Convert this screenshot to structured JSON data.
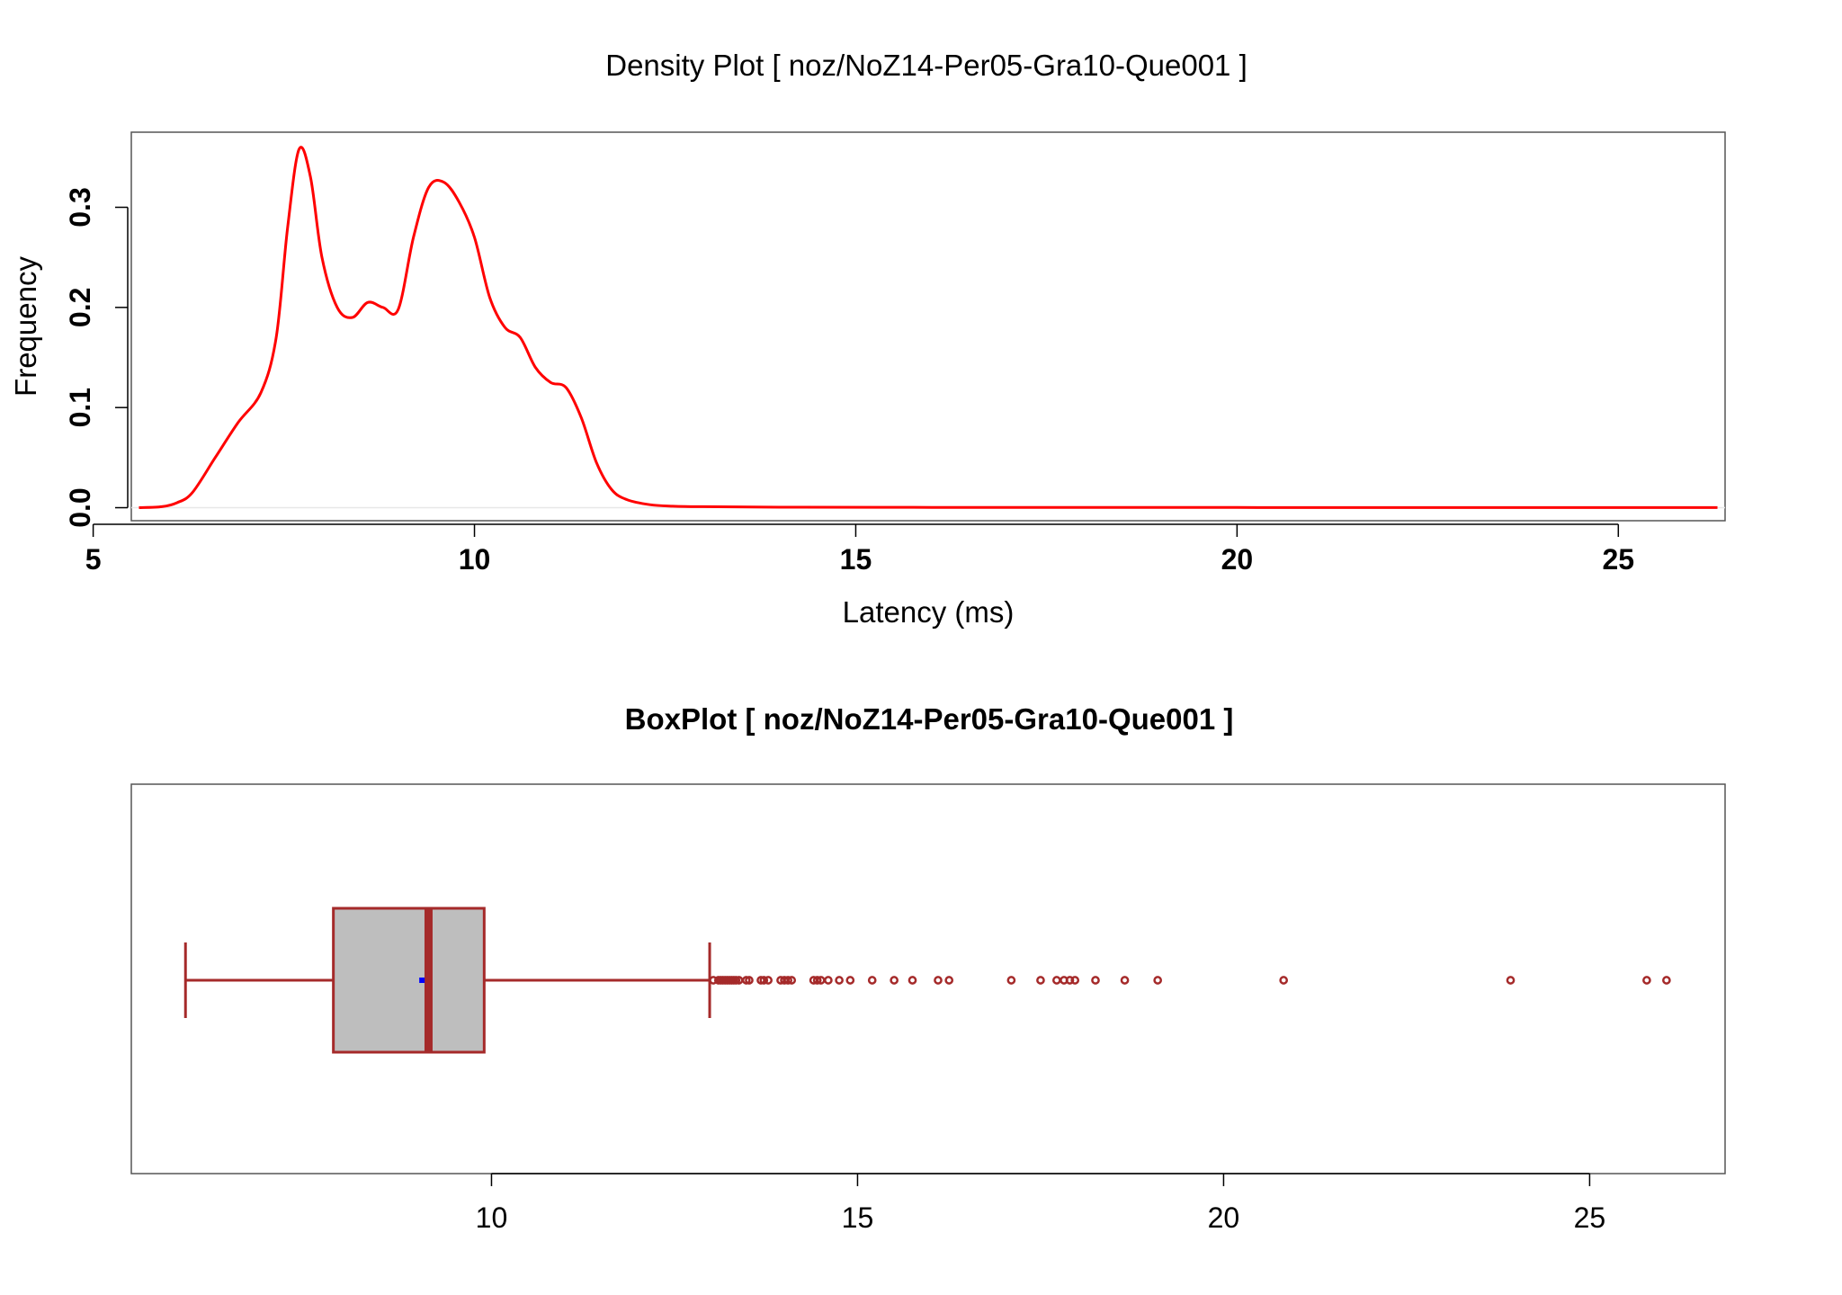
{
  "chart_data": [
    {
      "type": "line",
      "title": "Density Plot [ noz/NoZ14-Per05-Gra10-Que001 ]",
      "xlabel": "Latency (ms)",
      "ylabel": "Frequency",
      "xlim": [
        5.5,
        26.4
      ],
      "ylim": [
        -0.013,
        0.375
      ],
      "x_ticks": [
        "5",
        "10",
        "15",
        "20",
        "25"
      ],
      "y_ticks": [
        "0.0",
        "0.1",
        "0.2",
        "0.3"
      ],
      "line_color": "#ff0000",
      "grid": false,
      "series": [
        {
          "x": [
            5.6,
            5.9,
            6.1,
            6.3,
            6.6,
            6.9,
            7.2,
            7.4,
            7.55,
            7.7,
            7.85,
            8.0,
            8.2,
            8.4,
            8.6,
            8.8,
            9.0,
            9.2,
            9.4,
            9.6,
            9.8,
            10.0,
            10.2,
            10.4,
            10.6,
            10.8,
            11.0,
            11.2,
            11.4,
            11.6,
            11.8,
            12.0,
            12.3,
            12.6,
            13.0,
            14.0,
            16.0,
            18.0,
            20.0,
            22.0,
            24.0,
            26.3
          ],
          "y": [
            0.0,
            0.001,
            0.005,
            0.015,
            0.05,
            0.085,
            0.115,
            0.17,
            0.28,
            0.358,
            0.33,
            0.25,
            0.2,
            0.19,
            0.205,
            0.2,
            0.198,
            0.27,
            0.32,
            0.325,
            0.305,
            0.27,
            0.21,
            0.18,
            0.17,
            0.14,
            0.125,
            0.12,
            0.09,
            0.045,
            0.018,
            0.008,
            0.003,
            0.0015,
            0.001,
            0.0005,
            0.0003,
            0.0002,
            0.0002,
            0.0001,
            0.0001,
            0.0001
          ]
        }
      ]
    },
    {
      "type": "box",
      "title": "BoxPlot [ noz/NoZ14-Per05-Gra10-Que001 ]",
      "xlim": [
        5.08,
        26.85
      ],
      "x_ticks": [
        "10",
        "15",
        "20",
        "25"
      ],
      "box_fill": "#bebebe",
      "stroke_color": "#a52a2a",
      "mean_color": "#0000ff",
      "stats": {
        "whisker_low": 5.82,
        "q1": 7.84,
        "median": 9.14,
        "mean": 9.05,
        "q3": 9.9,
        "whisker_high": 12.98
      },
      "outliers": [
        13.03,
        13.1,
        13.13,
        13.16,
        13.19,
        13.22,
        13.25,
        13.28,
        13.31,
        13.34,
        13.38,
        13.48,
        13.52,
        13.68,
        13.72,
        13.78,
        13.95,
        14.0,
        14.05,
        14.1,
        14.4,
        14.45,
        14.5,
        14.6,
        14.75,
        14.9,
        15.2,
        15.5,
        15.75,
        16.1,
        16.25,
        17.1,
        17.5,
        17.72,
        17.82,
        17.9,
        17.97,
        18.25,
        18.65,
        19.1,
        20.82,
        23.92,
        25.78,
        26.05
      ]
    }
  ]
}
